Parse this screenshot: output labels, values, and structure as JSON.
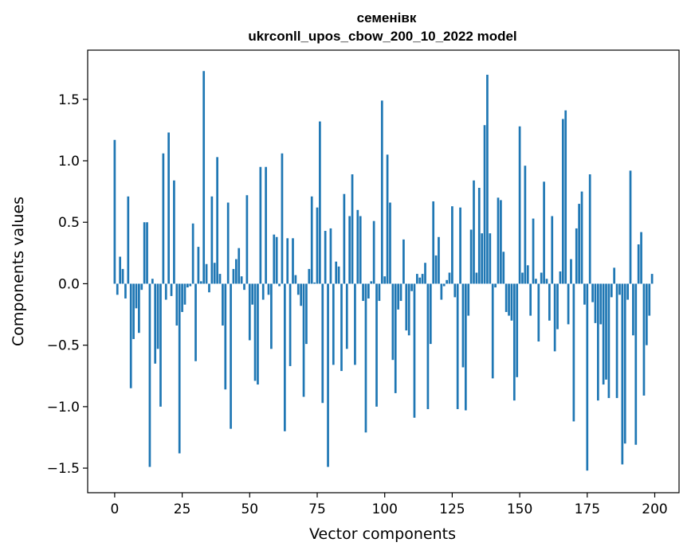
{
  "chart_data": {
    "type": "bar",
    "title": "семенівк",
    "subtitle": "ukrconll_upos_cbow_200_10_2022 model",
    "xlabel": "Vector components",
    "ylabel": "Components values",
    "xlim": [
      -10,
      209
    ],
    "ylim": [
      -1.7,
      1.9
    ],
    "xticks": [
      0,
      25,
      50,
      75,
      100,
      125,
      150,
      175,
      200
    ],
    "xtick_labels": [
      "0",
      "25",
      "50",
      "75",
      "100",
      "125",
      "150",
      "175",
      "200"
    ],
    "yticks": [
      -1.5,
      -1.0,
      -0.5,
      0.0,
      0.5,
      1.0,
      1.5
    ],
    "ytick_labels": [
      "−1.5",
      "−1.0",
      "−0.5",
      "0.0",
      "0.5",
      "1.0",
      "1.5"
    ],
    "bar_color": "#1f77b4",
    "grid": false,
    "x": [
      0,
      1,
      2,
      3,
      4,
      5,
      6,
      7,
      8,
      9,
      10,
      11,
      12,
      13,
      14,
      15,
      16,
      17,
      18,
      19,
      20,
      21,
      22,
      23,
      24,
      25,
      26,
      27,
      28,
      29,
      30,
      31,
      32,
      33,
      34,
      35,
      36,
      37,
      38,
      39,
      40,
      41,
      42,
      43,
      44,
      45,
      46,
      47,
      48,
      49,
      50,
      51,
      52,
      53,
      54,
      55,
      56,
      57,
      58,
      59,
      60,
      61,
      62,
      63,
      64,
      65,
      66,
      67,
      68,
      69,
      70,
      71,
      72,
      73,
      74,
      75,
      76,
      77,
      78,
      79,
      80,
      81,
      82,
      83,
      84,
      85,
      86,
      87,
      88,
      89,
      90,
      91,
      92,
      93,
      94,
      95,
      96,
      97,
      98,
      99,
      100,
      101,
      102,
      103,
      104,
      105,
      106,
      107,
      108,
      109,
      110,
      111,
      112,
      113,
      114,
      115,
      116,
      117,
      118,
      119,
      120,
      121,
      122,
      123,
      124,
      125,
      126,
      127,
      128,
      129,
      130,
      131,
      132,
      133,
      134,
      135,
      136,
      137,
      138,
      139,
      140,
      141,
      142,
      143,
      144,
      145,
      146,
      147,
      148,
      149,
      150,
      151,
      152,
      153,
      154,
      155,
      156,
      157,
      158,
      159,
      160,
      161,
      162,
      163,
      164,
      165,
      166,
      167,
      168,
      169,
      170,
      171,
      172,
      173,
      174,
      175,
      176,
      177,
      178,
      179,
      180,
      181,
      182,
      183,
      184,
      185,
      186,
      187,
      188,
      189,
      190,
      191,
      192,
      193,
      194,
      195,
      196,
      197,
      198,
      199
    ],
    "values": [
      1.17,
      -0.09,
      0.22,
      0.12,
      -0.12,
      0.71,
      -0.85,
      -0.45,
      -0.2,
      -0.4,
      -0.05,
      0.5,
      0.5,
      -1.49,
      0.04,
      -0.65,
      -0.53,
      -1.0,
      1.06,
      -0.13,
      1.23,
      -0.1,
      0.84,
      -0.34,
      -1.38,
      -0.23,
      -0.17,
      -0.03,
      -0.02,
      0.49,
      -0.63,
      0.3,
      0.02,
      1.73,
      0.16,
      -0.07,
      0.71,
      0.17,
      1.03,
      0.08,
      -0.34,
      -0.86,
      0.66,
      -1.18,
      0.12,
      0.2,
      0.29,
      0.06,
      -0.05,
      0.72,
      -0.46,
      -0.17,
      -0.79,
      -0.82,
      0.95,
      -0.13,
      0.95,
      -0.09,
      -0.53,
      0.4,
      0.38,
      -0.02,
      1.06,
      -1.2,
      0.37,
      -0.67,
      0.37,
      0.07,
      -0.09,
      -0.18,
      -0.92,
      -0.49,
      0.12,
      0.71,
      0.01,
      0.62,
      1.32,
      -0.97,
      0.43,
      -1.49,
      0.45,
      -0.66,
      0.18,
      0.14,
      -0.71,
      0.73,
      -0.53,
      0.55,
      0.89,
      -0.66,
      0.6,
      0.55,
      -0.14,
      -1.21,
      -0.12,
      0.02,
      0.51,
      -1.0,
      -0.14,
      1.49,
      0.06,
      1.05,
      0.66,
      -0.62,
      -0.89,
      -0.21,
      -0.14,
      0.36,
      -0.38,
      -0.42,
      -0.06,
      -1.09,
      0.08,
      0.05,
      0.08,
      0.17,
      -1.02,
      -0.49,
      0.67,
      0.23,
      0.38,
      -0.13,
      -0.02,
      0.03,
      0.09,
      0.63,
      -0.11,
      -1.02,
      0.62,
      -0.68,
      -1.03,
      -0.26,
      0.44,
      0.84,
      0.09,
      0.78,
      0.41,
      1.29,
      1.7,
      0.41,
      -0.77,
      -0.03,
      0.7,
      0.68,
      0.26,
      -0.23,
      -0.26,
      -0.3,
      -0.95,
      -0.76,
      1.28,
      0.09,
      0.96,
      0.15,
      -0.26,
      0.53,
      0.04,
      -0.47,
      0.09,
      0.83,
      0.04,
      -0.3,
      0.55,
      -0.55,
      -0.37,
      0.1,
      1.34,
      1.41,
      -0.33,
      0.2,
      -1.12,
      0.45,
      0.65,
      0.75,
      -0.17,
      -1.52,
      0.89,
      -0.15,
      -0.32,
      -0.95,
      -0.33,
      -0.82,
      -0.78,
      -0.93,
      -0.11,
      0.13,
      -0.93,
      -0.09,
      -1.47,
      -1.3,
      -0.13,
      0.92,
      -0.42,
      -1.31,
      0.32,
      0.42,
      -0.91,
      -0.5,
      -0.26,
      0.08
    ]
  }
}
